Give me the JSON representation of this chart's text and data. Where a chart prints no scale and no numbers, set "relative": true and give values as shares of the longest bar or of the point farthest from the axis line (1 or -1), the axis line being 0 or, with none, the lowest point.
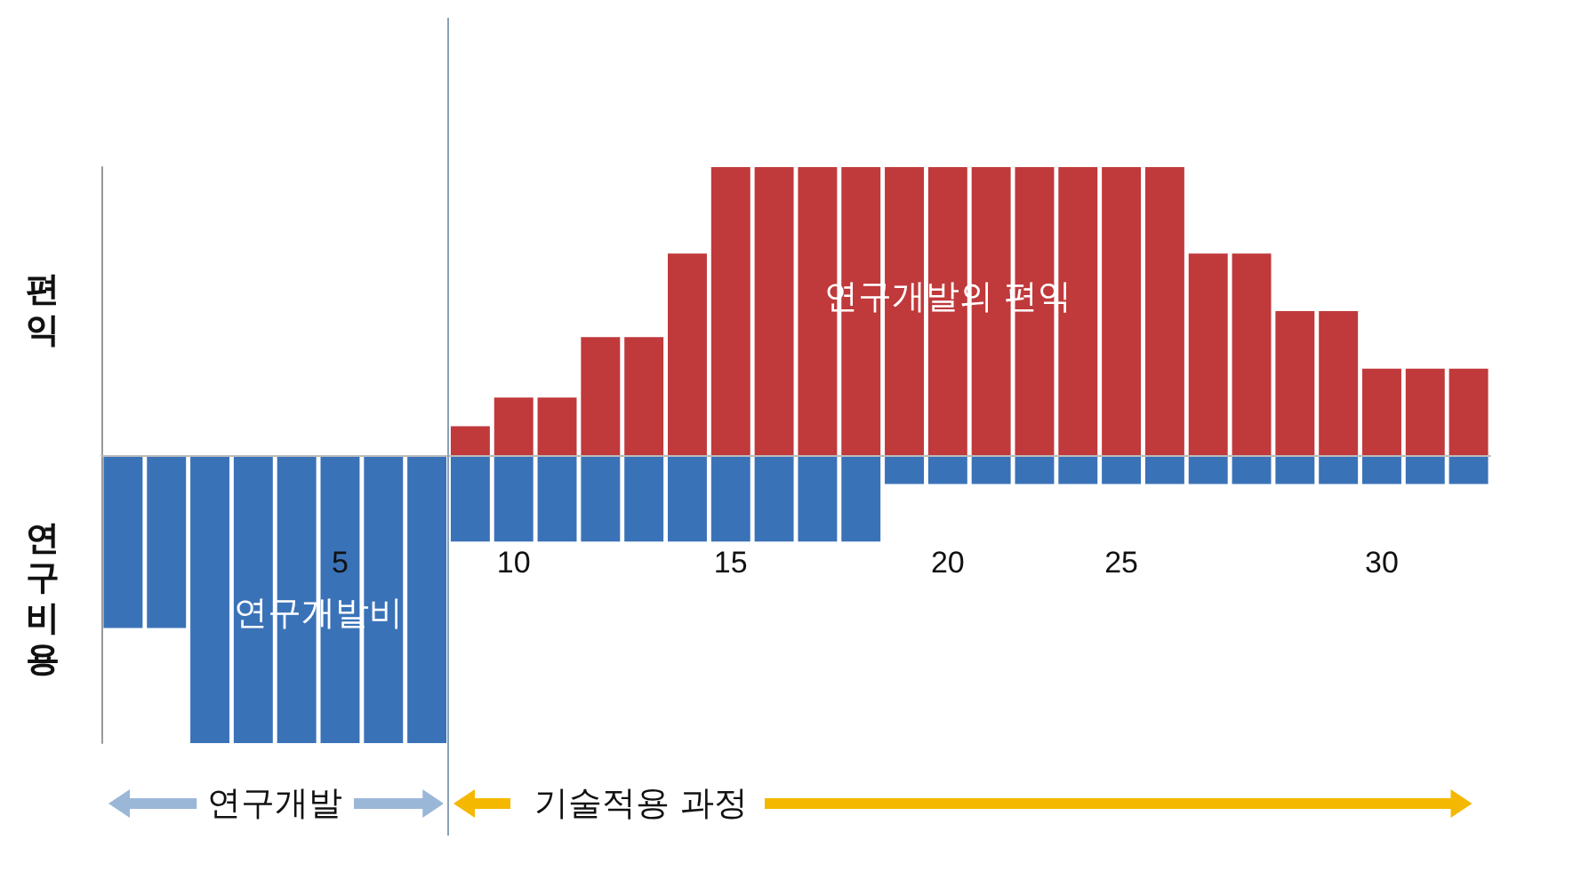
{
  "chart_data": {
    "type": "bar",
    "relative": true,
    "stacked": true,
    "legend": false,
    "grid": false,
    "categories": [
      null,
      null,
      null,
      null,
      null,
      "5",
      null,
      null,
      null,
      "10",
      null,
      null,
      null,
      null,
      "15",
      null,
      null,
      null,
      null,
      "20",
      null,
      null,
      null,
      "25",
      null,
      null,
      null,
      null,
      null,
      "30",
      null,
      null
    ],
    "series": [
      {
        "name": "연구개발비",
        "color": "#3a72b8",
        "values": [
          -0.6,
          -0.6,
          -1,
          -1,
          -1,
          -1,
          -1,
          -1,
          -0.3,
          -0.3,
          -0.3,
          -0.3,
          -0.3,
          -0.3,
          -0.3,
          -0.3,
          -0.3,
          -0.3,
          -0.1,
          -0.1,
          -0.1,
          -0.1,
          -0.1,
          -0.1,
          -0.1,
          -0.1,
          -0.1,
          -0.1,
          -0.1,
          -0.1,
          -0.1,
          -0.1
        ]
      },
      {
        "name": "연구개발의 편익",
        "color": "#c0393b",
        "values": [
          null,
          null,
          null,
          null,
          null,
          null,
          null,
          null,
          0.1,
          0.2,
          0.2,
          0.41,
          0.41,
          0.7,
          1,
          1,
          1,
          1,
          1,
          1,
          1,
          1,
          1,
          1,
          1,
          0.7,
          0.7,
          0.5,
          0.5,
          0.3,
          0.3,
          0.3
        ]
      }
    ],
    "annotations": [
      "편익",
      "연구비용",
      "연구개발",
      "기술적용 과정"
    ]
  }
}
